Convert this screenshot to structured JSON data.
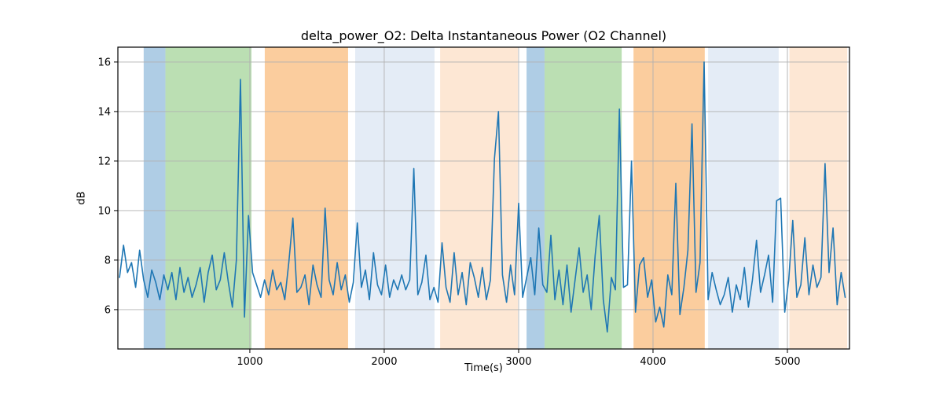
{
  "chart_data": {
    "type": "line",
    "title": "delta_power_O2: Delta Instantaneous Power (O2 Channel)",
    "xlabel": "Time(s)",
    "ylabel": "dB",
    "xlim": [
      18,
      5462
    ],
    "ylim": [
      4.41,
      16.6
    ],
    "x_ticks": [
      1000,
      2000,
      3000,
      4000,
      5000
    ],
    "y_ticks": [
      6,
      8,
      10,
      12,
      14,
      16
    ],
    "grid": true,
    "legend": "none",
    "grid_color": "#b0b0b0",
    "line_color": "#1f77b4",
    "band_colors": {
      "blue": "#afcde5",
      "green": "#bbdfb3",
      "orange": "#fbcd9e",
      "pale_blue": "#e4ecf6",
      "pale_orange": "#fde7d4"
    },
    "bands": [
      {
        "start": 210,
        "end": 372,
        "color": "#afcde5"
      },
      {
        "start": 372,
        "end": 1012,
        "color": "#bbdfb3"
      },
      {
        "start": 1111,
        "end": 1731,
        "color": "#fbcd9e"
      },
      {
        "start": 1784,
        "end": 2374,
        "color": "#e4ecf6"
      },
      {
        "start": 2416,
        "end": 2994,
        "color": "#fde7d4"
      },
      {
        "start": 3059,
        "end": 3193,
        "color": "#afcde5"
      },
      {
        "start": 3193,
        "end": 3767,
        "color": "#bbdfb3"
      },
      {
        "start": 3855,
        "end": 4385,
        "color": "#fbcd9e"
      },
      {
        "start": 4410,
        "end": 4935,
        "color": "#e4ecf6"
      },
      {
        "start": 5015,
        "end": 5445,
        "color": "#fde7d4"
      }
    ],
    "series": [
      {
        "name": "delta_power_O2",
        "x": [
          30,
          60,
          90,
          120,
          150,
          180,
          210,
          240,
          270,
          300,
          330,
          360,
          390,
          420,
          450,
          480,
          510,
          540,
          570,
          600,
          630,
          660,
          690,
          720,
          750,
          780,
          810,
          840,
          870,
          900,
          930,
          960,
          990,
          1020,
          1050,
          1080,
          1110,
          1140,
          1170,
          1200,
          1230,
          1260,
          1290,
          1320,
          1350,
          1380,
          1410,
          1440,
          1470,
          1500,
          1530,
          1560,
          1590,
          1620,
          1650,
          1680,
          1710,
          1740,
          1770,
          1800,
          1830,
          1860,
          1890,
          1920,
          1950,
          1980,
          2010,
          2040,
          2070,
          2100,
          2130,
          2160,
          2190,
          2220,
          2250,
          2280,
          2310,
          2340,
          2370,
          2400,
          2430,
          2460,
          2490,
          2520,
          2550,
          2580,
          2610,
          2640,
          2670,
          2700,
          2730,
          2760,
          2790,
          2820,
          2850,
          2880,
          2910,
          2940,
          2970,
          3000,
          3030,
          3060,
          3090,
          3120,
          3150,
          3180,
          3210,
          3240,
          3270,
          3300,
          3330,
          3360,
          3390,
          3420,
          3450,
          3480,
          3510,
          3540,
          3570,
          3600,
          3630,
          3660,
          3690,
          3720,
          3750,
          3780,
          3810,
          3840,
          3870,
          3900,
          3930,
          3960,
          3990,
          4020,
          4050,
          4080,
          4110,
          4140,
          4170,
          4200,
          4230,
          4260,
          4290,
          4320,
          4350,
          4380,
          4410,
          4440,
          4470,
          4500,
          4530,
          4560,
          4590,
          4620,
          4650,
          4680,
          4710,
          4740,
          4770,
          4800,
          4830,
          4860,
          4890,
          4920,
          4950,
          4980,
          5010,
          5040,
          5070,
          5100,
          5130,
          5160,
          5190,
          5220,
          5250,
          5280,
          5310,
          5340,
          5370,
          5400,
          5430
        ],
        "y": [
          7.3,
          8.6,
          7.5,
          7.9,
          6.9,
          8.4,
          7.2,
          6.5,
          7.6,
          7.1,
          6.4,
          7.4,
          6.8,
          7.5,
          6.4,
          7.7,
          6.7,
          7.3,
          6.5,
          7.0,
          7.7,
          6.3,
          7.5,
          8.2,
          6.8,
          7.2,
          8.3,
          7.1,
          6.1,
          8.0,
          15.3,
          5.7,
          9.8,
          7.5,
          7.0,
          6.5,
          7.2,
          6.6,
          7.6,
          6.8,
          7.1,
          6.4,
          7.9,
          9.7,
          6.7,
          6.9,
          7.4,
          6.2,
          7.8,
          7.0,
          6.5,
          10.1,
          7.2,
          6.6,
          7.9,
          6.8,
          7.4,
          6.3,
          7.1,
          9.5,
          6.9,
          7.6,
          6.4,
          8.3,
          7.0,
          6.6,
          7.8,
          6.5,
          7.2,
          6.8,
          7.4,
          6.8,
          7.2,
          11.7,
          6.6,
          7.1,
          8.2,
          6.4,
          6.9,
          6.3,
          8.7,
          6.9,
          6.3,
          8.3,
          6.6,
          7.5,
          6.2,
          7.9,
          7.3,
          6.5,
          7.7,
          6.4,
          7.2,
          12.1,
          14.0,
          7.4,
          6.3,
          7.8,
          6.6,
          10.3,
          6.5,
          7.3,
          8.1,
          6.6,
          9.3,
          7.0,
          6.7,
          9.0,
          6.4,
          7.6,
          6.2,
          7.8,
          5.9,
          7.2,
          8.5,
          6.7,
          7.4,
          6.0,
          8.2,
          9.8,
          6.4,
          5.1,
          7.3,
          6.8,
          14.1,
          6.9,
          7.0,
          12.0,
          5.9,
          7.8,
          8.1,
          6.5,
          7.2,
          5.5,
          6.1,
          5.3,
          7.4,
          6.6,
          11.1,
          5.8,
          6.9,
          8.4,
          13.5,
          6.7,
          7.9,
          16.0,
          6.4,
          7.5,
          6.8,
          6.2,
          6.6,
          7.3,
          5.9,
          7.0,
          6.4,
          7.7,
          6.1,
          7.2,
          8.8,
          6.7,
          7.4,
          8.2,
          6.3,
          10.4,
          10.5,
          5.9,
          7.2,
          9.6,
          6.5,
          7.0,
          8.9,
          6.6,
          7.8,
          6.9,
          7.3,
          11.9,
          7.5,
          9.3,
          6.2,
          7.5,
          6.5
        ]
      }
    ]
  }
}
